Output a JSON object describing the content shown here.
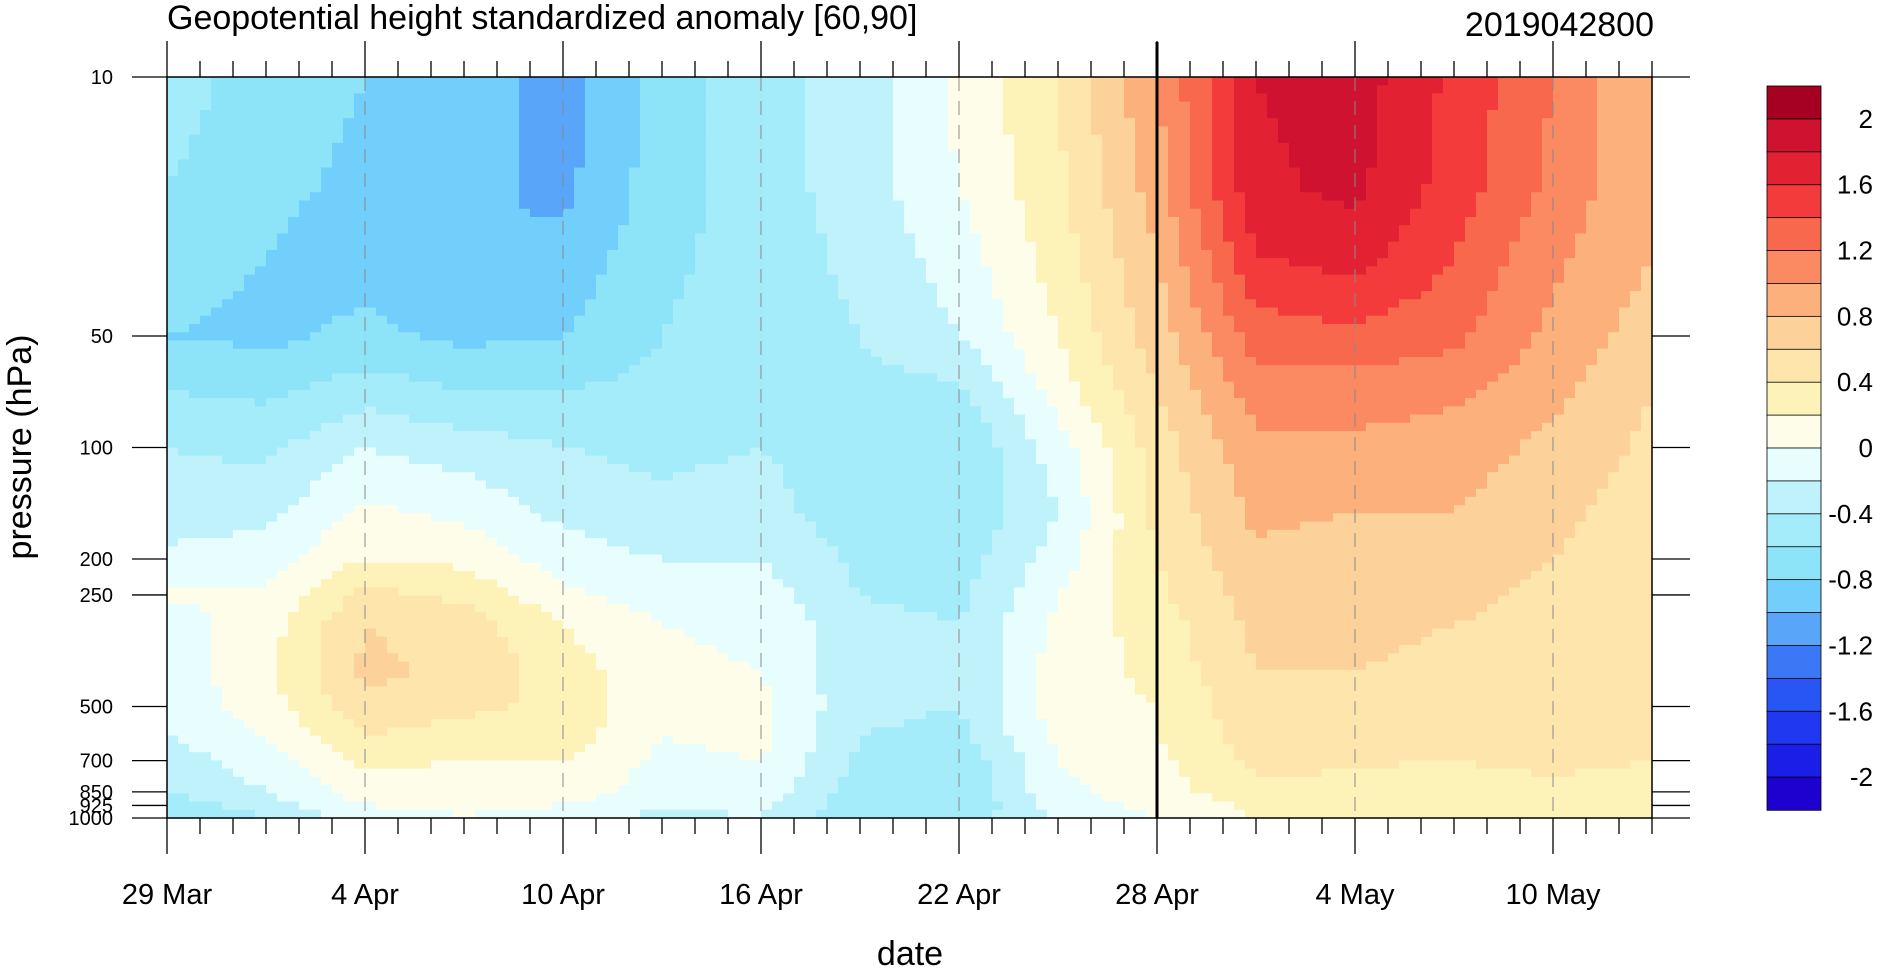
{
  "chart_data": {
    "type": "heatmap",
    "title": "Geopotential height standardized anomaly [60,90]",
    "date_label": "2019042800",
    "xlabel": "date",
    "ylabel": "pressure (hPa)",
    "x_start": "29 Mar 2019",
    "x_end": "13 May 2019",
    "x_tick_labels": [
      "29 Mar",
      "4 Apr",
      "10 Apr",
      "16 Apr",
      "22 Apr",
      "28 Apr",
      "4 May",
      "10 May"
    ],
    "x_tick_day_offsets": [
      0,
      6,
      12,
      18,
      24,
      30,
      36,
      42
    ],
    "x_range_days": [
      0,
      45
    ],
    "forecast_start_line": "28 Apr",
    "y_scale": "log",
    "y_inverted": true,
    "y_range_hPa": [
      10,
      1000
    ],
    "y_tick_values": [
      10,
      50,
      100,
      200,
      250,
      500,
      700,
      850,
      925,
      1000
    ],
    "y_tick_labels": [
      "10",
      "50",
      "100",
      "200",
      "250",
      "500",
      "700",
      "850",
      "925",
      "1000"
    ],
    "grid": "vertical dashed lines at x ticks",
    "colorbar": {
      "position": "right",
      "levels": [
        -2.2,
        -2,
        -1.8,
        -1.6,
        -1.4,
        -1.2,
        -1,
        -0.8,
        -0.6,
        -0.4,
        -0.2,
        0,
        0.2,
        0.4,
        0.6,
        0.8,
        1,
        1.2,
        1.4,
        1.6,
        1.8,
        2,
        2.2
      ],
      "colors": [
        "#1e00cf",
        "#1a1ee6",
        "#2039f0",
        "#2856f5",
        "#3b78f6",
        "#58a5fa",
        "#72cffb",
        "#8de3f8",
        "#a5ecfa",
        "#bff2fb",
        "#e7fdfe",
        "#fefde9",
        "#fdf3b9",
        "#fde5ac",
        "#fcd29a",
        "#fcb07c",
        "#fb8a62",
        "#f8684d",
        "#f43b3c",
        "#e22233",
        "#ce1230",
        "#a60022"
      ],
      "tick_labels": [
        "2",
        "1.6",
        "1.2",
        "0.8",
        "0.4",
        "0",
        "-0.4",
        "-0.8",
        "-1.2",
        "-1.6",
        "-2"
      ]
    },
    "pressure_levels": [
      10,
      20,
      30,
      50,
      70,
      100,
      150,
      200,
      250,
      300,
      400,
      500,
      600,
      700,
      850,
      925,
      1000
    ],
    "anomaly_profiles": [
      {
        "day": 0,
        "values": [
          -0.5,
          -0.6,
          -0.7,
          -0.8,
          -0.6,
          -0.4,
          -0.3,
          -0.15,
          0.02,
          -0.1,
          -0.1,
          -0.15,
          -0.2,
          -0.3,
          -0.4,
          -0.5,
          -0.6
        ]
      },
      {
        "day": 3,
        "values": [
          -0.7,
          -0.75,
          -0.8,
          -0.85,
          -0.65,
          -0.45,
          -0.25,
          -0.1,
          0.05,
          0.1,
          0.15,
          0.1,
          0.0,
          -0.1,
          -0.2,
          -0.3,
          -0.4
        ]
      },
      {
        "day": 6,
        "values": [
          -0.8,
          -0.85,
          -0.9,
          -0.75,
          -0.5,
          -0.2,
          0.05,
          0.2,
          0.45,
          0.6,
          0.65,
          0.55,
          0.4,
          0.25,
          0.1,
          0.0,
          -0.1
        ]
      },
      {
        "day": 9,
        "values": [
          -0.9,
          -0.95,
          -1.0,
          -0.85,
          -0.6,
          -0.3,
          -0.05,
          0.15,
          0.35,
          0.5,
          0.55,
          0.45,
          0.3,
          0.2,
          0.1,
          0.02,
          0.0
        ]
      },
      {
        "day": 12,
        "values": [
          -1.1,
          -1.05,
          -0.95,
          -0.8,
          -0.6,
          -0.4,
          -0.25,
          -0.1,
          0.05,
          0.2,
          0.3,
          0.35,
          0.3,
          0.2,
          0.1,
          0.0,
          -0.1
        ]
      },
      {
        "day": 15,
        "values": [
          -0.7,
          -0.7,
          -0.65,
          -0.6,
          -0.55,
          -0.45,
          -0.35,
          -0.2,
          -0.1,
          0.0,
          0.05,
          0.05,
          0.0,
          -0.05,
          -0.1,
          -0.2,
          -0.25
        ]
      },
      {
        "day": 18,
        "values": [
          -0.5,
          -0.5,
          -0.5,
          -0.5,
          -0.45,
          -0.4,
          -0.3,
          -0.2,
          -0.1,
          -0.05,
          0.0,
          0.05,
          0.05,
          0.0,
          -0.05,
          -0.15,
          -0.2
        ]
      },
      {
        "day": 21,
        "values": [
          -0.3,
          -0.3,
          -0.35,
          -0.4,
          -0.45,
          -0.55,
          -0.55,
          -0.45,
          -0.4,
          -0.35,
          -0.35,
          -0.35,
          -0.4,
          -0.45,
          -0.5,
          -0.55,
          -0.55
        ]
      },
      {
        "day": 24,
        "values": [
          0.05,
          0.0,
          -0.1,
          -0.2,
          -0.45,
          -0.6,
          -0.6,
          -0.5,
          -0.45,
          -0.4,
          -0.4,
          -0.4,
          -0.45,
          -0.55,
          -0.6,
          -0.6,
          -0.55
        ]
      },
      {
        "day": 27,
        "values": [
          0.4,
          0.35,
          0.3,
          0.2,
          0.1,
          -0.1,
          -0.2,
          -0.1,
          0.0,
          0.05,
          0.1,
          0.1,
          0.05,
          0.0,
          -0.05,
          -0.1,
          -0.15
        ]
      },
      {
        "day": 30,
        "values": [
          1.0,
          0.9,
          0.8,
          0.7,
          0.6,
          0.5,
          0.45,
          0.4,
          0.35,
          0.3,
          0.25,
          0.2,
          0.2,
          0.15,
          0.1,
          0.05,
          0.0
        ]
      },
      {
        "day": 33,
        "values": [
          1.8,
          1.75,
          1.6,
          1.3,
          1.1,
          0.95,
          0.85,
          0.75,
          0.7,
          0.65,
          0.6,
          0.55,
          0.5,
          0.45,
          0.35,
          0.25,
          0.2
        ]
      },
      {
        "day": 36,
        "values": [
          1.9,
          1.85,
          1.7,
          1.35,
          1.1,
          0.95,
          0.8,
          0.7,
          0.65,
          0.62,
          0.6,
          0.55,
          0.5,
          0.42,
          0.35,
          0.3,
          0.25
        ]
      },
      {
        "day": 39,
        "values": [
          1.55,
          1.5,
          1.4,
          1.25,
          1.05,
          0.9,
          0.8,
          0.7,
          0.65,
          0.6,
          0.58,
          0.55,
          0.48,
          0.4,
          0.3,
          0.25,
          0.2
        ]
      },
      {
        "day": 42,
        "values": [
          1.2,
          1.15,
          1.05,
          0.95,
          0.85,
          0.75,
          0.65,
          0.6,
          0.55,
          0.55,
          0.55,
          0.55,
          0.5,
          0.45,
          0.35,
          0.25,
          0.2
        ]
      },
      {
        "day": 45,
        "values": [
          0.8,
          0.8,
          0.8,
          0.7,
          0.6,
          0.55,
          0.5,
          0.45,
          0.4,
          0.45,
          0.5,
          0.5,
          0.45,
          0.4,
          0.3,
          0.25,
          0.2
        ]
      }
    ]
  }
}
